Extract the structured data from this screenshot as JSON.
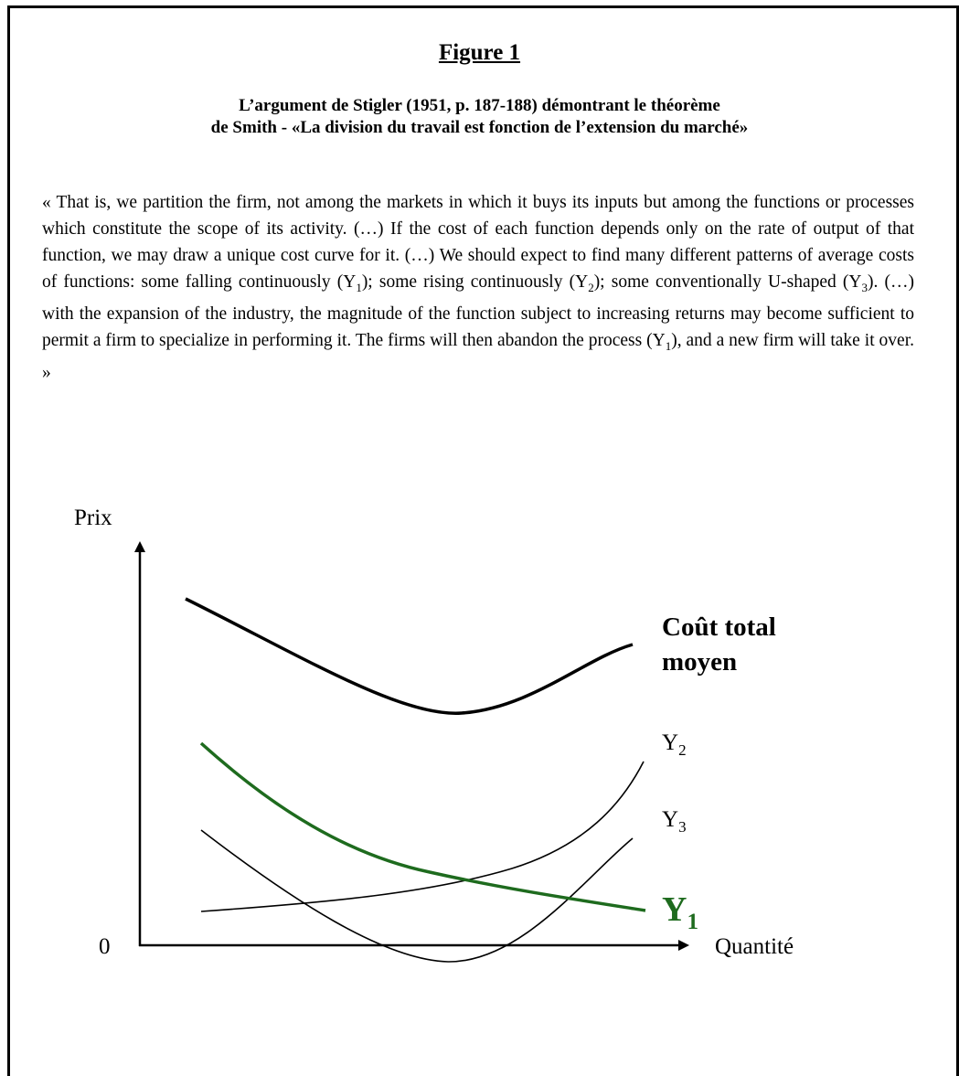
{
  "figure": {
    "title": "Figure 1",
    "subtitle_line1": "L’argument de Stigler (1951, p. 187-188) démontrant le théorème",
    "subtitle_line2": "de Smith - «La division du travail est fonction de l’extension du marché»"
  },
  "quote": {
    "part1": "« That is, we partition the firm, not among the markets in which it buys its inputs but among the functions or processes which constitute the scope of its activity. (…) If the cost of each function depends only on the rate of output of that function, we may draw a unique cost curve for it. (…) We should expect to find many different patterns of average costs of functions: some falling continuously (Y",
    "sub1": "1",
    "part2": "); some rising continuously (Y",
    "sub2": "2",
    "part3": "); some conventionally U-shaped (Y",
    "sub3": "3",
    "part4": "). (…) with the expansion of the industry, the magnitude of the function subject to increasing returns may become sufficient to permit a firm to specialize in performing it. The firms will then abandon the process (Y",
    "sub4": "1",
    "part5": "), and a new firm will take it over. »"
  },
  "diagram": {
    "y_axis_label": "Prix",
    "x_axis_label": "Quantité",
    "origin_label": "0",
    "curves": {
      "total_line1": "Coût total",
      "total_line2": "moyen",
      "y2_letter": "Y",
      "y2_sub": "2",
      "y3_letter": "Y",
      "y3_sub": "3",
      "y1_letter": "Y",
      "y1_sub": "1"
    },
    "colors": {
      "y1": "#1e6b1e",
      "axis": "#000000"
    }
  }
}
